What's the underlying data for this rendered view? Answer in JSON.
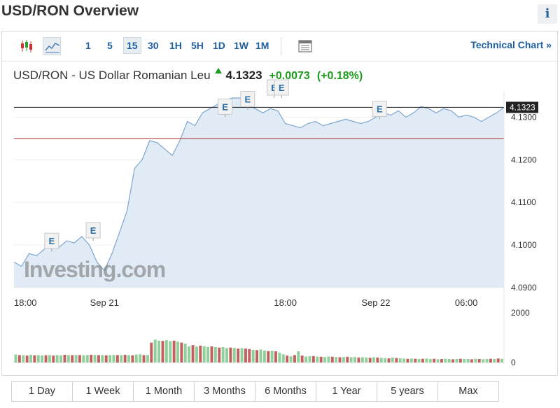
{
  "page": {
    "title": "USD/RON Overview",
    "info_label": "i"
  },
  "toolbar": {
    "intervals": [
      "1",
      "5",
      "15",
      "30",
      "1H",
      "5H",
      "1D",
      "1W",
      "1M"
    ],
    "selected_interval": "15",
    "technical_link": "Technical Chart »"
  },
  "quote": {
    "name": "USD/RON - US Dollar Romanian Leu",
    "price": "4.1323",
    "change": "+0.0073",
    "change_pct": "(+0.18%)"
  },
  "colors": {
    "accent": "#1e5fa0",
    "up": "#1d9b1d",
    "area_fill": "#e1ebf5",
    "line": "#7ea6cf",
    "prev_close": "#b03030",
    "vol_up": "#8fcf9a",
    "vol_down": "#c26060"
  },
  "watermark": "Investing.com",
  "chart_data": {
    "type": "area",
    "y_ticks": [
      "4.0900",
      "4.1000",
      "4.1100",
      "4.1200",
      "4.1300"
    ],
    "ylim": [
      4.09,
      4.1345
    ],
    "current_label": "4.1323",
    "current_value": 4.1323,
    "reference_value": 4.125,
    "x_ticks": [
      {
        "label": "18:00",
        "t": 0
      },
      {
        "label": "Sep 21",
        "t": 24
      },
      {
        "label": "18:00",
        "t": 72
      },
      {
        "label": "Sep 22",
        "t": 96
      },
      {
        "label": "06:00",
        "t": 120
      }
    ],
    "x": [
      0,
      2,
      4,
      6,
      8,
      10,
      12,
      14,
      16,
      18,
      20,
      22,
      24,
      26,
      28,
      30,
      32,
      34,
      36,
      38,
      40,
      42,
      44,
      46,
      48,
      50,
      52,
      54,
      56,
      58,
      60,
      62,
      64,
      66,
      68,
      70,
      72,
      74,
      76,
      78,
      80,
      82,
      84,
      86,
      88,
      90,
      92,
      94,
      96,
      98,
      100,
      102,
      104,
      106,
      108,
      110,
      112,
      114,
      116,
      118,
      120,
      122,
      124,
      126,
      128,
      130
    ],
    "values": [
      4.096,
      4.095,
      4.098,
      4.0975,
      4.099,
      4.1,
      4.0995,
      4.101,
      4.1005,
      4.102,
      4.1,
      4.096,
      4.094,
      4.098,
      4.103,
      4.108,
      4.118,
      4.12,
      4.1245,
      4.124,
      4.1225,
      4.121,
      4.1245,
      4.129,
      4.128,
      4.131,
      4.132,
      4.133,
      4.134,
      4.1345,
      4.1345,
      4.133,
      4.132,
      4.131,
      4.132,
      4.1315,
      4.1285,
      4.128,
      4.1275,
      4.1285,
      4.129,
      4.128,
      4.1285,
      4.129,
      4.1295,
      4.129,
      4.1285,
      4.129,
      4.13,
      4.131,
      4.1305,
      4.1315,
      4.13,
      4.131,
      4.1325,
      4.132,
      4.131,
      4.132,
      4.1315,
      4.13,
      4.1305,
      4.13,
      4.129,
      4.13,
      4.131,
      4.1323
    ],
    "events": [
      {
        "label": "E",
        "t": 10,
        "v": 4.0985
      },
      {
        "label": "E",
        "t": 21,
        "v": 4.101
      },
      {
        "label": "E",
        "t": 56,
        "v": 4.13
      },
      {
        "label": "E",
        "t": 62,
        "v": 4.1318
      },
      {
        "label": "E",
        "t": 69,
        "v": 4.1345
      },
      {
        "label": "E",
        "t": 71,
        "v": 4.1345
      },
      {
        "label": "E",
        "t": 97,
        "v": 4.1295
      }
    ],
    "volume": {
      "y_ticks": [
        "2000",
        "0"
      ],
      "ylim": [
        0,
        2000
      ],
      "values": [
        320,
        300,
        290,
        280,
        310,
        290,
        300,
        285,
        295,
        300,
        280,
        300,
        290,
        310,
        300,
        295,
        305,
        300,
        290,
        300,
        310,
        305,
        300,
        295,
        290,
        300,
        305,
        300,
        295,
        310,
        300,
        290,
        320,
        330,
        300,
        300,
        800,
        920,
        880,
        870,
        900,
        860,
        880,
        840,
        800,
        760,
        650,
        700,
        640,
        680,
        660,
        630,
        650,
        620,
        600,
        620,
        580,
        600,
        590,
        560,
        580,
        560,
        540,
        510,
        500,
        520,
        480,
        460,
        470,
        450,
        400,
        330,
        280,
        250,
        300,
        450,
        280,
        240,
        250,
        260,
        240,
        230,
        220,
        240,
        230,
        220,
        210,
        220,
        230,
        210,
        220,
        200,
        210,
        200,
        190,
        210,
        200,
        190,
        180,
        170,
        200,
        180,
        170,
        160,
        150,
        160,
        150,
        140,
        150,
        160,
        140,
        150,
        130,
        140,
        150,
        140,
        130,
        140,
        150,
        140,
        140,
        130,
        150,
        140,
        130,
        140,
        150,
        140,
        160,
        150
      ],
      "up": [
        1,
        0,
        1,
        0,
        1,
        0,
        1,
        1,
        0,
        1,
        0,
        1,
        1,
        0,
        1,
        0,
        1,
        0,
        1,
        1,
        0,
        1,
        0,
        1,
        0,
        1,
        1,
        0,
        1,
        0,
        1,
        0,
        1,
        1,
        0,
        1,
        0,
        1,
        1,
        0,
        1,
        1,
        0,
        1,
        0,
        1,
        1,
        0,
        1,
        0,
        1,
        1,
        0,
        1,
        0,
        1,
        1,
        0,
        1,
        0,
        1,
        0,
        0,
        1,
        0,
        1,
        1,
        0,
        1,
        0,
        1,
        1,
        0,
        1,
        0,
        1,
        0,
        1,
        1,
        0,
        1,
        0,
        1,
        1,
        0,
        1,
        0,
        1,
        0,
        1,
        1,
        0,
        1,
        1,
        0,
        1,
        0,
        1,
        1,
        0,
        1,
        0,
        1,
        1,
        0,
        1,
        0,
        1,
        0,
        1,
        1,
        0,
        1,
        0,
        1,
        1,
        0,
        1,
        0,
        1,
        1,
        0,
        1,
        0,
        1,
        1,
        0,
        1,
        0,
        1
      ]
    }
  },
  "ranges": [
    "1 Day",
    "1 Week",
    "1 Month",
    "3 Months",
    "6 Months",
    "1 Year",
    "5 years",
    "Max"
  ]
}
